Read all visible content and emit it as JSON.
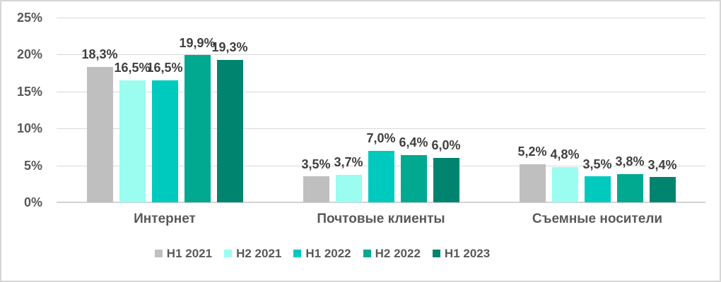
{
  "chart_data": {
    "type": "bar",
    "title": "",
    "categories": [
      "Интернет",
      "Почтовые клиенты",
      "Съемные носители"
    ],
    "series": [
      {
        "name": "H1 2021",
        "color": "#BFBFBF",
        "values": [
          18.3,
          3.5,
          5.2
        ],
        "labels": [
          "18,3%",
          "3,5%",
          "5,2%"
        ]
      },
      {
        "name": "H2 2021",
        "color": "#9BFCF0",
        "values": [
          16.5,
          3.7,
          4.8
        ],
        "labels": [
          "16,5%",
          "3,7%",
          "4,8%"
        ]
      },
      {
        "name": "H1 2022",
        "color": "#00CABD",
        "values": [
          16.5,
          7.0,
          3.5
        ],
        "labels": [
          "16,5%",
          "7,0%",
          "3,5%"
        ]
      },
      {
        "name": "H2 2022",
        "color": "#00A98F",
        "values": [
          19.9,
          6.4,
          3.8
        ],
        "labels": [
          "19,9%",
          "6,4%",
          "3,8%"
        ]
      },
      {
        "name": "H1 2023",
        "color": "#008470",
        "values": [
          19.3,
          6.0,
          3.4
        ],
        "labels": [
          "19,3%",
          "6,0%",
          "3,4%"
        ]
      }
    ],
    "y_axis": {
      "min": 0,
      "max": 25,
      "ticks": [
        {
          "label": "25%",
          "value": 25
        },
        {
          "label": "20%",
          "value": 20
        },
        {
          "label": "15%",
          "value": 15
        },
        {
          "label": "10%",
          "value": 10
        },
        {
          "label": "5%",
          "value": 5
        },
        {
          "label": "0%",
          "value": 0
        }
      ]
    },
    "grid": true,
    "legend_position": "bottom",
    "value_label_format": "comma-decimal-percent"
  },
  "colors": {
    "grid": "#D9D9D9",
    "axis_line": "#D2D2D2",
    "frame_border": "#D6D6D6",
    "tick_text": "#595959",
    "category_text": "#595959",
    "legend_text": "#595959",
    "value_label_text": "#3F3F3F"
  }
}
